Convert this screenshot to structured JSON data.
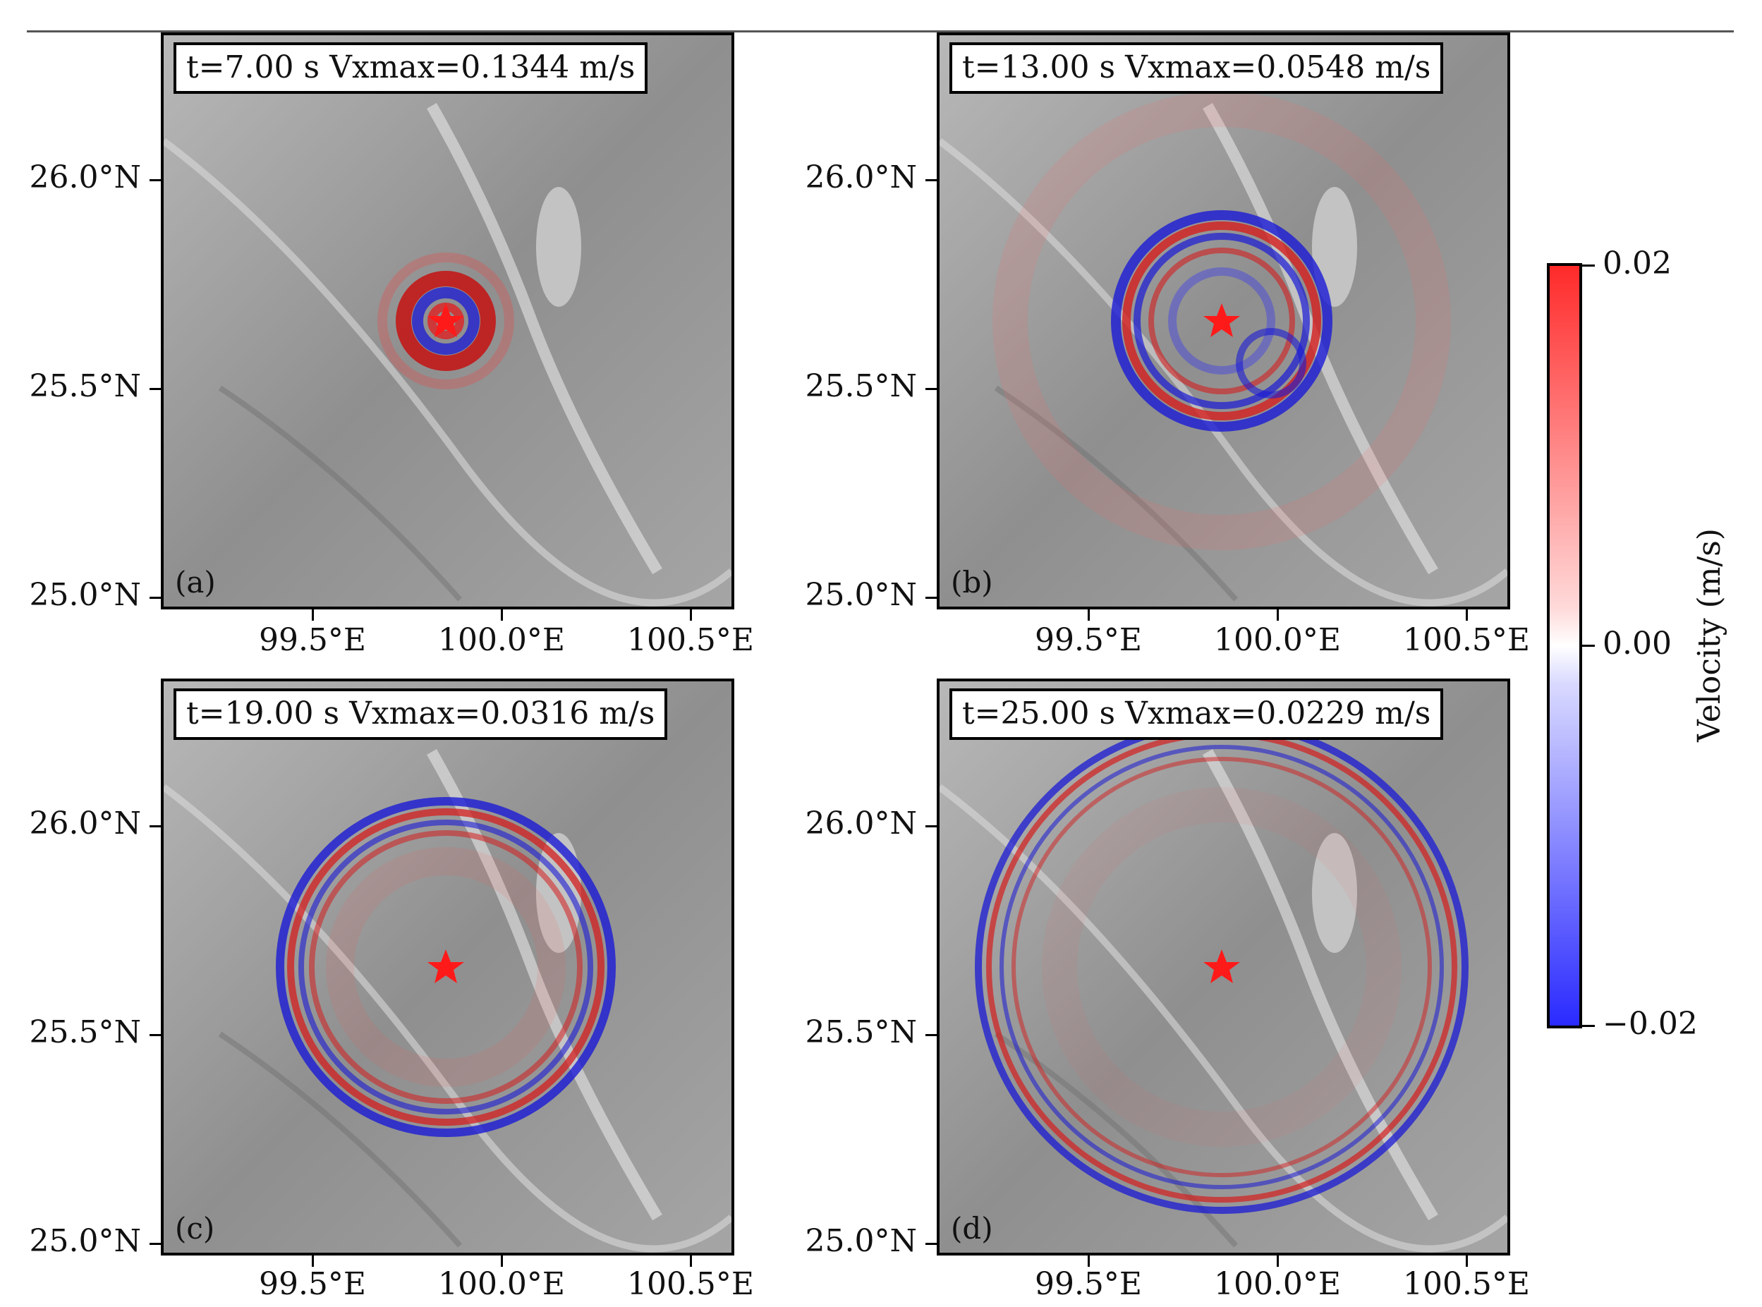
{
  "figure": {
    "panels": [
      {
        "id": "a",
        "title": "t=7.00 s Vxmax=0.1344 m/s",
        "label": "(a)",
        "time_s": 7.0,
        "vxmax_ms": 0.1344,
        "wavefront_radius_deg": 0.07
      },
      {
        "id": "b",
        "title": "t=13.00 s Vxmax=0.0548 m/s",
        "label": "(b)",
        "time_s": 13.0,
        "vxmax_ms": 0.0548,
        "wavefront_radius_deg": 0.27
      },
      {
        "id": "c",
        "title": "t=19.00 s Vxmax=0.0316 m/s",
        "label": "(c)",
        "time_s": 19.0,
        "vxmax_ms": 0.0316,
        "wavefront_radius_deg": 0.45
      },
      {
        "id": "d",
        "title": "t=25.00 s Vxmax=0.0229 m/s",
        "label": "(d)",
        "time_s": 25.0,
        "vxmax_ms": 0.0229,
        "wavefront_radius_deg": 0.62
      }
    ],
    "epicenter": {
      "lon": 99.87,
      "lat": 25.67,
      "marker": "red-star"
    },
    "y_ticks": [
      "26.0°N",
      "25.5°N",
      "25.0°N"
    ],
    "x_ticks": [
      "99.5°E",
      "100.0°E",
      "100.5°E"
    ],
    "extent": {
      "lon": [
        99.13,
        100.63
      ],
      "lat": [
        24.97,
        26.35
      ]
    },
    "colorbar": {
      "label": "Velocity (m/s)",
      "ticks": [
        "0.02",
        "0.00",
        "−0.02"
      ],
      "range": [
        -0.02,
        0.02
      ],
      "colors": {
        "high": "#ff2a2a",
        "mid": "#ffffff",
        "low": "#2a2aff"
      }
    }
  }
}
